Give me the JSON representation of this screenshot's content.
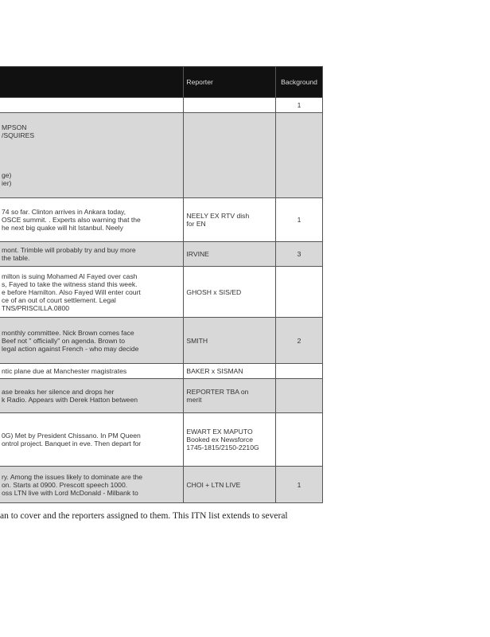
{
  "table": {
    "headers": [
      "",
      "Reporter",
      "Background"
    ],
    "rows": [
      {
        "story": "",
        "reporter": "",
        "background": "1",
        "shaded": false
      },
      {
        "story": "MPSON\n/SQUIRES\n\n\n\n\nge)\nier)",
        "reporter": "",
        "background": "",
        "shaded": true
      },
      {
        "story": "74 so far.  Clinton arrives in Ankara today,\nOSCE summit. . Experts also warning that the\nhe next big quake will hit Istanbul. Neely",
        "reporter": "NEELY EX RTV dish\nfor EN",
        "background": "1",
        "shaded": false
      },
      {
        "story": "mont. Trimble will probably try and buy more\n the table.",
        "reporter": "IRVINE",
        "background": "3",
        "shaded": true
      },
      {
        "story": "milton is suing Mohamed Al Fayed over cash\ns, Fayed to take the witness stand this week.\ne before Hamilton. Also Fayed Will enter court\nce of an out of court settlement. Legal\nTNS/PRISCILLA.0800",
        "reporter": "GHOSH x SIS/ED",
        "background": "",
        "shaded": false
      },
      {
        "story": " monthly committee.  Nick Brown comes face\nBeef not \" officially\" on agenda. Brown to\nlegal action against French - who may decide",
        "reporter": "SMITH",
        "background": "2",
        "shaded": true
      },
      {
        "story": "ntic plane due at Manchester magistrates",
        "reporter": "BAKER x SISMAN",
        "background": "",
        "shaded": false
      },
      {
        "story": "ase breaks her silence and drops her\nk Radio. Appears with Derek Hatton between",
        "reporter": "REPORTER TBA on\nmerit",
        "background": "",
        "shaded": true
      },
      {
        "story": "0G)  Met by President Chissano.  In PM Queen\nontrol project.  Banquet in eve.  Then depart for",
        "reporter": "EWART EX MAPUTO\nBooked ex Newsforce\n1745-1815/2150-2210G",
        "background": "",
        "shaded": false
      },
      {
        "story": "ry. Among the issues likely to dominate are the\non. Starts at 0900. Prescott speech 1000.\noss LTN live with Lord McDonald - Milbank to",
        "reporter": "CHOI + LTN LIVE",
        "background": "1",
        "shaded": true
      }
    ]
  },
  "caption": "an to cover and the reporters assigned to them. This ITN list extends to several"
}
